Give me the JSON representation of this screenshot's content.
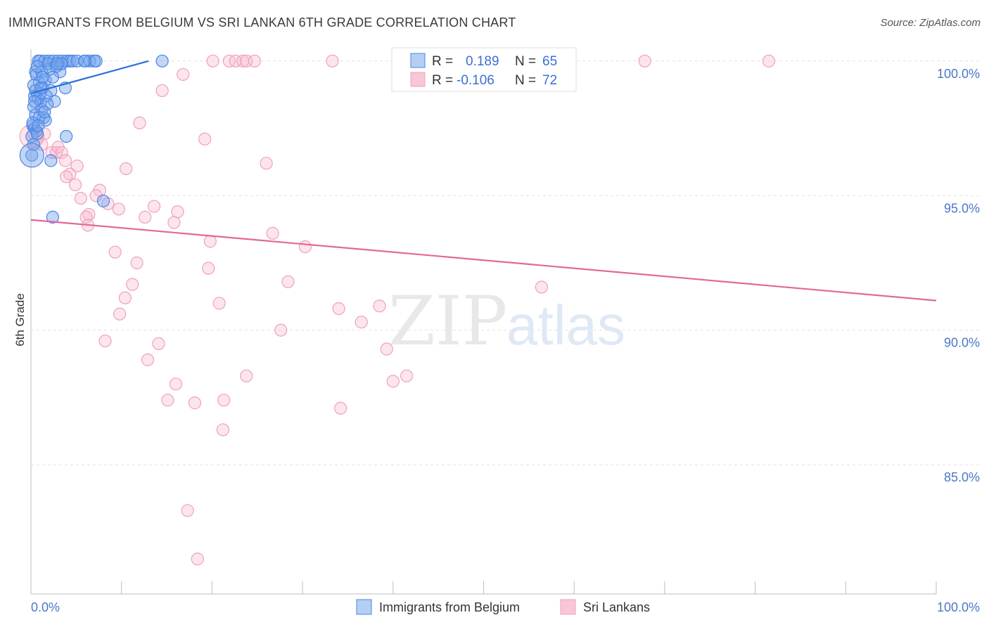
{
  "header": {
    "title": "IMMIGRANTS FROM BELGIUM VS SRI LANKAN 6TH GRADE CORRELATION CHART",
    "source": "Source: ZipAtlas.com"
  },
  "watermark": {
    "zip": "ZIP",
    "atlas": "atlas"
  },
  "legend_box": {
    "rows": [
      {
        "r_label": "R =",
        "r_value": "0.189",
        "n_label": "N =",
        "n_value": "65"
      },
      {
        "r_label": "R =",
        "r_value": "-0.106",
        "n_label": "N =",
        "n_value": "72"
      }
    ]
  },
  "bottom_legend": {
    "items": [
      {
        "label": "Immigrants from Belgium"
      },
      {
        "label": "Sri Lankans"
      }
    ]
  },
  "chart_data": {
    "type": "scatter",
    "title": "IMMIGRANTS FROM BELGIUM VS SRI LANKAN 6TH GRADE CORRELATION CHART",
    "xlabel": "",
    "ylabel": "6th Grade",
    "xlim": [
      0,
      100
    ],
    "ylim": [
      80.2,
      100.7
    ],
    "x_tick_labels": [
      "0.0%",
      "100.0%"
    ],
    "y_ticks": [
      100,
      95,
      90,
      85
    ],
    "y_tick_labels": [
      "100.0%",
      "95.0%",
      "90.0%",
      "85.0%"
    ],
    "colors": {
      "belgium": "#4a86e8",
      "srilanka": "#f0a0bc",
      "belgium_line": "#2a6fd6",
      "srilanka_line": "#e4679a"
    },
    "series": [
      {
        "name": "Immigrants from Belgium",
        "r": 0.189,
        "n": 65,
        "trend": {
          "x": [
            0,
            13
          ],
          "y": [
            98.8,
            100.0
          ]
        },
        "points": [
          [
            0.5,
            99.6
          ],
          [
            0.8,
            100.0
          ],
          [
            1.0,
            100.0
          ],
          [
            1.5,
            100.0
          ],
          [
            2.0,
            100.0
          ],
          [
            2.5,
            100.0
          ],
          [
            3.0,
            100.0
          ],
          [
            3.5,
            100.0
          ],
          [
            4.0,
            100.0
          ],
          [
            4.3,
            100.0
          ],
          [
            6.0,
            100.0
          ],
          [
            6.5,
            100.0
          ],
          [
            7.0,
            100.0
          ],
          [
            7.2,
            100.0
          ],
          [
            14.5,
            100.0
          ],
          [
            0.6,
            99.5
          ],
          [
            1.2,
            99.6
          ],
          [
            2.1,
            99.7
          ],
          [
            3.2,
            99.6
          ],
          [
            0.9,
            99.2
          ],
          [
            1.6,
            99.3
          ],
          [
            1.3,
            99.0
          ],
          [
            2.2,
            98.9
          ],
          [
            3.8,
            99.0
          ],
          [
            0.4,
            98.7
          ],
          [
            0.8,
            98.6
          ],
          [
            1.1,
            98.5
          ],
          [
            1.7,
            98.7
          ],
          [
            2.6,
            98.5
          ],
          [
            0.3,
            98.3
          ],
          [
            1.2,
            98.2
          ],
          [
            0.5,
            98.0
          ],
          [
            1.4,
            97.9
          ],
          [
            1.6,
            97.8
          ],
          [
            0.2,
            97.6
          ],
          [
            0.4,
            97.5
          ],
          [
            0.6,
            97.4
          ],
          [
            0.1,
            97.2
          ],
          [
            3.9,
            97.2
          ],
          [
            0.3,
            96.9
          ],
          [
            0.1,
            96.5
          ],
          [
            2.2,
            96.3
          ],
          [
            0.7,
            99.8
          ],
          [
            1.9,
            99.9
          ],
          [
            2.8,
            99.8
          ],
          [
            3.4,
            99.9
          ],
          [
            4.6,
            100.0
          ],
          [
            5.1,
            100.0
          ],
          [
            0.3,
            99.1
          ],
          [
            1.0,
            98.8
          ],
          [
            1.8,
            98.4
          ],
          [
            0.9,
            97.9
          ],
          [
            0.2,
            97.7
          ],
          [
            0.7,
            97.3
          ],
          [
            1.5,
            98.1
          ],
          [
            2.4,
            99.4
          ],
          [
            0.5,
            98.9
          ],
          [
            1.1,
            99.0
          ],
          [
            0.8,
            97.6
          ],
          [
            5.9,
            100.0
          ],
          [
            2.4,
            94.2
          ],
          [
            8.0,
            94.8
          ],
          [
            0.4,
            98.5
          ],
          [
            1.3,
            99.4
          ],
          [
            2.9,
            99.9
          ]
        ],
        "large_points": [
          [
            0.1,
            96.5
          ]
        ]
      },
      {
        "name": "Sri Lankans",
        "r": -0.106,
        "n": 72,
        "trend": {
          "x": [
            0,
            100
          ],
          "y": [
            94.1,
            91.1
          ]
        },
        "points": [
          [
            20.1,
            100.0
          ],
          [
            21.9,
            100.0
          ],
          [
            22.6,
            100.0
          ],
          [
            23.4,
            100.0
          ],
          [
            23.8,
            100.0
          ],
          [
            24.7,
            100.0
          ],
          [
            33.3,
            100.0
          ],
          [
            67.8,
            100.0
          ],
          [
            81.5,
            100.0
          ],
          [
            16.8,
            99.5
          ],
          [
            14.5,
            98.9
          ],
          [
            12.0,
            97.7
          ],
          [
            19.2,
            97.1
          ],
          [
            0.3,
            97.3
          ],
          [
            0.8,
            97.2
          ],
          [
            1.5,
            97.3
          ],
          [
            0.5,
            97.0
          ],
          [
            1.2,
            96.9
          ],
          [
            2.3,
            96.6
          ],
          [
            2.8,
            96.6
          ],
          [
            3.0,
            96.8
          ],
          [
            3.4,
            96.6
          ],
          [
            3.8,
            96.3
          ],
          [
            5.1,
            96.1
          ],
          [
            10.5,
            96.0
          ],
          [
            26.0,
            96.2
          ],
          [
            4.3,
            95.8
          ],
          [
            4.9,
            95.4
          ],
          [
            3.9,
            95.7
          ],
          [
            7.6,
            95.2
          ],
          [
            5.5,
            94.9
          ],
          [
            7.2,
            95.0
          ],
          [
            8.5,
            94.7
          ],
          [
            9.7,
            94.5
          ],
          [
            13.6,
            94.6
          ],
          [
            16.2,
            94.4
          ],
          [
            6.4,
            94.3
          ],
          [
            6.1,
            94.2
          ],
          [
            12.6,
            94.2
          ],
          [
            15.8,
            94.0
          ],
          [
            6.3,
            93.9
          ],
          [
            26.7,
            93.6
          ],
          [
            19.8,
            93.3
          ],
          [
            30.3,
            93.1
          ],
          [
            9.3,
            92.9
          ],
          [
            11.7,
            92.5
          ],
          [
            19.6,
            92.3
          ],
          [
            28.4,
            91.8
          ],
          [
            11.2,
            91.7
          ],
          [
            56.4,
            91.6
          ],
          [
            10.4,
            91.2
          ],
          [
            20.8,
            91.0
          ],
          [
            38.5,
            90.9
          ],
          [
            34.0,
            90.8
          ],
          [
            9.8,
            90.6
          ],
          [
            36.5,
            90.3
          ],
          [
            27.6,
            90.0
          ],
          [
            8.2,
            89.6
          ],
          [
            14.1,
            89.5
          ],
          [
            39.3,
            89.3
          ],
          [
            12.9,
            88.9
          ],
          [
            23.8,
            88.3
          ],
          [
            41.5,
            88.3
          ],
          [
            40.0,
            88.1
          ],
          [
            16.0,
            88.0
          ],
          [
            15.1,
            87.4
          ],
          [
            18.1,
            87.3
          ],
          [
            21.3,
            87.4
          ],
          [
            34.2,
            87.1
          ],
          [
            21.2,
            86.3
          ],
          [
            17.3,
            83.3
          ],
          [
            18.4,
            81.5
          ]
        ],
        "large_points": [
          [
            0.1,
            97.2
          ]
        ]
      }
    ]
  }
}
